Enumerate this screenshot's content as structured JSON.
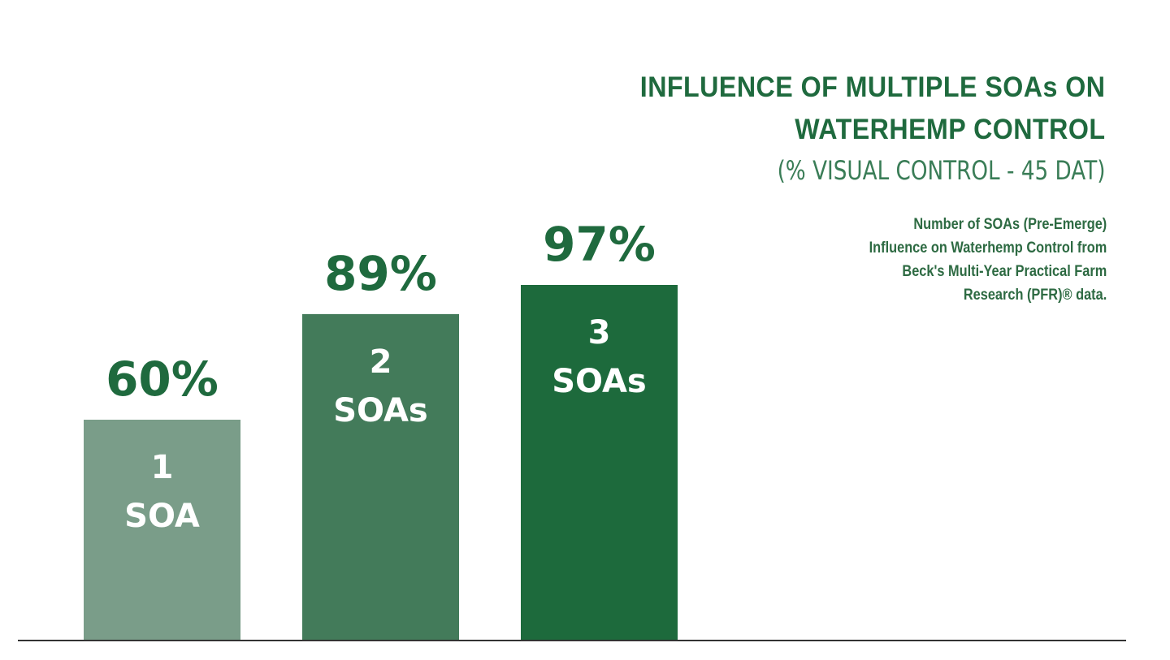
{
  "title": {
    "line1": "INFLUENCE OF MULTIPLE SOAs ON",
    "line2": "WATERHEMP CONTROL",
    "subtitle": "(% VISUAL CONTROL - 45 DAT)"
  },
  "note": {
    "line1": "Number of SOAs (Pre-Emerge)",
    "line2": "Influence on Waterhemp Control from",
    "line3": "Beck's Multi-Year Practical Farm",
    "line4": "Research (PFR)® data."
  },
  "chart_data": {
    "type": "bar",
    "title": "INFLUENCE OF MULTIPLE SOAs ON WATERHEMP CONTROL",
    "subtitle": "(% VISUAL CONTROL - 45 DAT)",
    "categories": [
      {
        "number": "1",
        "unit": "SOA"
      },
      {
        "number": "2",
        "unit": "SOAs"
      },
      {
        "number": "3",
        "unit": "SOAs"
      }
    ],
    "values": [
      60,
      89,
      97
    ],
    "value_labels": [
      "60%",
      "89%",
      "97%"
    ],
    "colors": [
      "#7a9d89",
      "#437b5a",
      "#1d6a3c"
    ],
    "value_label_color": "#1f6a3e",
    "axis_color": "#333333",
    "xlabel": "",
    "ylabel": "",
    "grid": false
  }
}
